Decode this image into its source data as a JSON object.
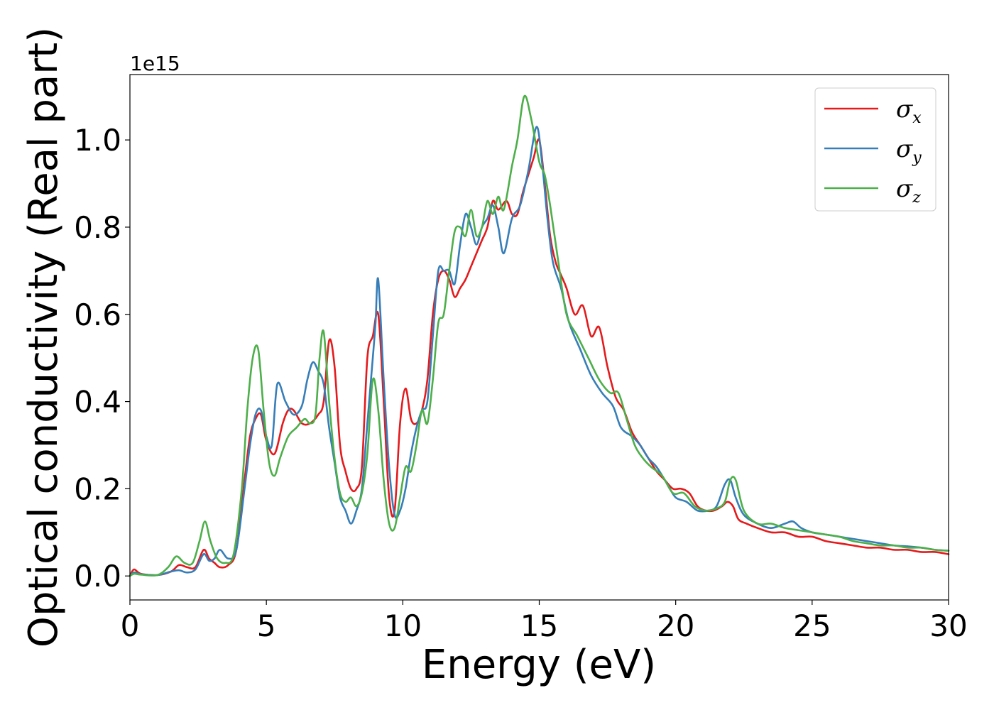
{
  "chart_data": {
    "type": "line",
    "xlabel": "Energy (eV)",
    "ylabel": "Optical conductivity (Real part)",
    "y_offset_label": "1e15",
    "xlim": [
      0,
      30
    ],
    "ylim": [
      -0.055,
      1.15
    ],
    "x_ticks": [
      0,
      5,
      10,
      15,
      20,
      25,
      30
    ],
    "x_tick_labels": [
      "0",
      "5",
      "10",
      "15",
      "20",
      "25",
      "30"
    ],
    "y_ticks": [
      0.0,
      0.2,
      0.4,
      0.6,
      0.8,
      1.0
    ],
    "y_tick_labels": [
      "0.0",
      "0.2",
      "0.4",
      "0.6",
      "0.8",
      "1.0"
    ],
    "grid": false,
    "legend_position": "top-right",
    "series": [
      {
        "name": "σx",
        "symbol": "σ",
        "subscript": "x",
        "color": "#e41a1c",
        "x": [
          0,
          0.15,
          0.4,
          1.0,
          1.5,
          1.8,
          2.1,
          2.4,
          2.7,
          2.9,
          3.1,
          3.3,
          3.6,
          3.9,
          4.2,
          4.4,
          4.6,
          4.8,
          5.0,
          5.3,
          5.6,
          5.8,
          6.0,
          6.3,
          6.6,
          6.9,
          7.1,
          7.3,
          7.5,
          7.7,
          7.9,
          8.1,
          8.3,
          8.5,
          8.7,
          8.9,
          9.1,
          9.3,
          9.5,
          9.7,
          9.9,
          10.1,
          10.3,
          10.5,
          10.7,
          10.9,
          11.1,
          11.3,
          11.5,
          11.7,
          11.9,
          12.1,
          12.3,
          12.5,
          12.7,
          12.9,
          13.1,
          13.3,
          13.5,
          13.8,
          14.0,
          14.2,
          14.4,
          14.6,
          14.8,
          15.0,
          15.2,
          15.4,
          15.6,
          15.8,
          16.0,
          16.3,
          16.6,
          16.9,
          17.2,
          17.5,
          17.8,
          18.1,
          18.4,
          18.7,
          19.0,
          19.3,
          19.6,
          19.9,
          20.2,
          20.5,
          20.8,
          21.1,
          21.4,
          21.7,
          21.9,
          22.1,
          22.3,
          22.6,
          23.0,
          23.5,
          24.0,
          24.5,
          25.0,
          25.5,
          26.0,
          26.5,
          27.0,
          27.5,
          28.0,
          28.5,
          29.0,
          29.5,
          30.0
        ],
        "y": [
          0.0,
          0.015,
          0.005,
          0.002,
          0.01,
          0.025,
          0.02,
          0.02,
          0.06,
          0.04,
          0.03,
          0.02,
          0.025,
          0.06,
          0.22,
          0.32,
          0.36,
          0.37,
          0.31,
          0.28,
          0.35,
          0.38,
          0.38,
          0.35,
          0.35,
          0.37,
          0.4,
          0.54,
          0.48,
          0.3,
          0.24,
          0.2,
          0.2,
          0.25,
          0.5,
          0.55,
          0.6,
          0.4,
          0.18,
          0.15,
          0.35,
          0.43,
          0.36,
          0.35,
          0.38,
          0.45,
          0.6,
          0.68,
          0.7,
          0.68,
          0.64,
          0.66,
          0.68,
          0.71,
          0.74,
          0.77,
          0.8,
          0.86,
          0.84,
          0.86,
          0.83,
          0.83,
          0.88,
          0.92,
          0.96,
          1.0,
          0.9,
          0.78,
          0.72,
          0.69,
          0.66,
          0.6,
          0.62,
          0.55,
          0.57,
          0.48,
          0.41,
          0.38,
          0.33,
          0.3,
          0.27,
          0.24,
          0.22,
          0.2,
          0.2,
          0.19,
          0.16,
          0.15,
          0.15,
          0.16,
          0.17,
          0.16,
          0.13,
          0.12,
          0.11,
          0.1,
          0.1,
          0.09,
          0.09,
          0.08,
          0.075,
          0.07,
          0.065,
          0.065,
          0.06,
          0.06,
          0.055,
          0.055,
          0.05
        ]
      },
      {
        "name": "σy",
        "symbol": "σ",
        "subscript": "y",
        "color": "#377eb8",
        "x": [
          0,
          0.15,
          0.4,
          1.0,
          1.5,
          1.8,
          2.1,
          2.4,
          2.7,
          2.9,
          3.1,
          3.3,
          3.6,
          3.9,
          4.2,
          4.4,
          4.6,
          4.8,
          5.0,
          5.2,
          5.4,
          5.7,
          6.0,
          6.3,
          6.5,
          6.7,
          6.9,
          7.1,
          7.3,
          7.5,
          7.7,
          7.9,
          8.1,
          8.3,
          8.5,
          8.7,
          8.9,
          9.0,
          9.1,
          9.3,
          9.5,
          9.7,
          9.9,
          10.1,
          10.3,
          10.5,
          10.7,
          10.9,
          11.1,
          11.3,
          11.5,
          11.7,
          11.9,
          12.1,
          12.3,
          12.5,
          12.7,
          12.9,
          13.1,
          13.3,
          13.5,
          13.7,
          14.0,
          14.3,
          14.6,
          14.9,
          15.1,
          15.3,
          15.5,
          15.8,
          16.1,
          16.5,
          16.9,
          17.3,
          17.7,
          18.0,
          18.4,
          18.7,
          19.0,
          19.3,
          19.7,
          20.0,
          20.4,
          20.8,
          21.2,
          21.5,
          21.8,
          22.0,
          22.2,
          22.5,
          23.0,
          23.5,
          24.0,
          24.3,
          24.6,
          25.0,
          25.5,
          26.0,
          26.5,
          27.0,
          27.5,
          28.0,
          28.5,
          29.0,
          29.5,
          30.0
        ],
        "y": [
          0.0,
          0.008,
          0.004,
          0.002,
          0.01,
          0.013,
          0.008,
          0.015,
          0.05,
          0.035,
          0.04,
          0.06,
          0.04,
          0.06,
          0.2,
          0.3,
          0.37,
          0.38,
          0.32,
          0.3,
          0.44,
          0.4,
          0.37,
          0.39,
          0.45,
          0.49,
          0.47,
          0.44,
          0.34,
          0.26,
          0.18,
          0.15,
          0.12,
          0.15,
          0.2,
          0.35,
          0.5,
          0.58,
          0.68,
          0.45,
          0.25,
          0.14,
          0.15,
          0.2,
          0.28,
          0.34,
          0.38,
          0.4,
          0.55,
          0.7,
          0.7,
          0.7,
          0.67,
          0.76,
          0.83,
          0.8,
          0.76,
          0.8,
          0.82,
          0.85,
          0.8,
          0.74,
          0.82,
          0.85,
          0.93,
          1.03,
          0.95,
          0.82,
          0.72,
          0.66,
          0.58,
          0.52,
          0.46,
          0.42,
          0.39,
          0.34,
          0.32,
          0.3,
          0.27,
          0.25,
          0.21,
          0.18,
          0.17,
          0.15,
          0.15,
          0.16,
          0.21,
          0.22,
          0.18,
          0.14,
          0.12,
          0.11,
          0.12,
          0.125,
          0.11,
          0.1,
          0.095,
          0.09,
          0.085,
          0.08,
          0.075,
          0.07,
          0.068,
          0.065,
          0.06,
          0.058
        ]
      },
      {
        "name": "σz",
        "symbol": "σ",
        "subscript": "z",
        "color": "#4daf4a",
        "x": [
          0,
          0.15,
          0.4,
          1.0,
          1.4,
          1.7,
          2.0,
          2.3,
          2.55,
          2.75,
          2.95,
          3.2,
          3.5,
          3.8,
          4.1,
          4.3,
          4.5,
          4.7,
          4.9,
          5.1,
          5.3,
          5.5,
          5.8,
          6.1,
          6.4,
          6.6,
          6.8,
          6.95,
          7.1,
          7.3,
          7.5,
          7.7,
          7.9,
          8.1,
          8.3,
          8.5,
          8.7,
          8.9,
          9.1,
          9.3,
          9.5,
          9.7,
          9.9,
          10.1,
          10.3,
          10.5,
          10.7,
          10.9,
          11.1,
          11.3,
          11.5,
          11.7,
          11.9,
          12.1,
          12.3,
          12.5,
          12.7,
          12.9,
          13.1,
          13.3,
          13.5,
          13.7,
          14.0,
          14.2,
          14.45,
          14.7,
          15.0,
          15.2,
          15.4,
          15.7,
          16.0,
          16.4,
          16.8,
          17.2,
          17.6,
          17.9,
          18.2,
          18.5,
          18.8,
          19.1,
          19.5,
          19.9,
          20.3,
          20.7,
          21.1,
          21.5,
          21.8,
          22.0,
          22.2,
          22.5,
          23.0,
          23.5,
          24.0,
          24.5,
          25.0,
          25.5,
          26.0,
          26.5,
          27.0,
          27.5,
          28.0,
          28.5,
          29.0,
          29.5,
          30.0
        ],
        "y": [
          0.0,
          0.005,
          0.003,
          0.002,
          0.02,
          0.045,
          0.03,
          0.03,
          0.08,
          0.125,
          0.08,
          0.04,
          0.03,
          0.05,
          0.2,
          0.38,
          0.5,
          0.52,
          0.38,
          0.26,
          0.23,
          0.27,
          0.32,
          0.34,
          0.36,
          0.35,
          0.37,
          0.5,
          0.56,
          0.4,
          0.27,
          0.19,
          0.17,
          0.18,
          0.16,
          0.19,
          0.28,
          0.45,
          0.38,
          0.22,
          0.12,
          0.11,
          0.18,
          0.25,
          0.24,
          0.3,
          0.38,
          0.35,
          0.45,
          0.58,
          0.6,
          0.7,
          0.79,
          0.8,
          0.78,
          0.84,
          0.78,
          0.8,
          0.86,
          0.83,
          0.87,
          0.84,
          0.94,
          1.0,
          1.1,
          1.05,
          0.95,
          0.92,
          0.85,
          0.72,
          0.6,
          0.55,
          0.5,
          0.45,
          0.42,
          0.42,
          0.36,
          0.3,
          0.27,
          0.25,
          0.23,
          0.19,
          0.19,
          0.16,
          0.15,
          0.155,
          0.17,
          0.22,
          0.22,
          0.15,
          0.12,
          0.12,
          0.11,
          0.105,
          0.1,
          0.095,
          0.09,
          0.08,
          0.075,
          0.07,
          0.07,
          0.065,
          0.065,
          0.06,
          0.058
        ]
      }
    ]
  }
}
